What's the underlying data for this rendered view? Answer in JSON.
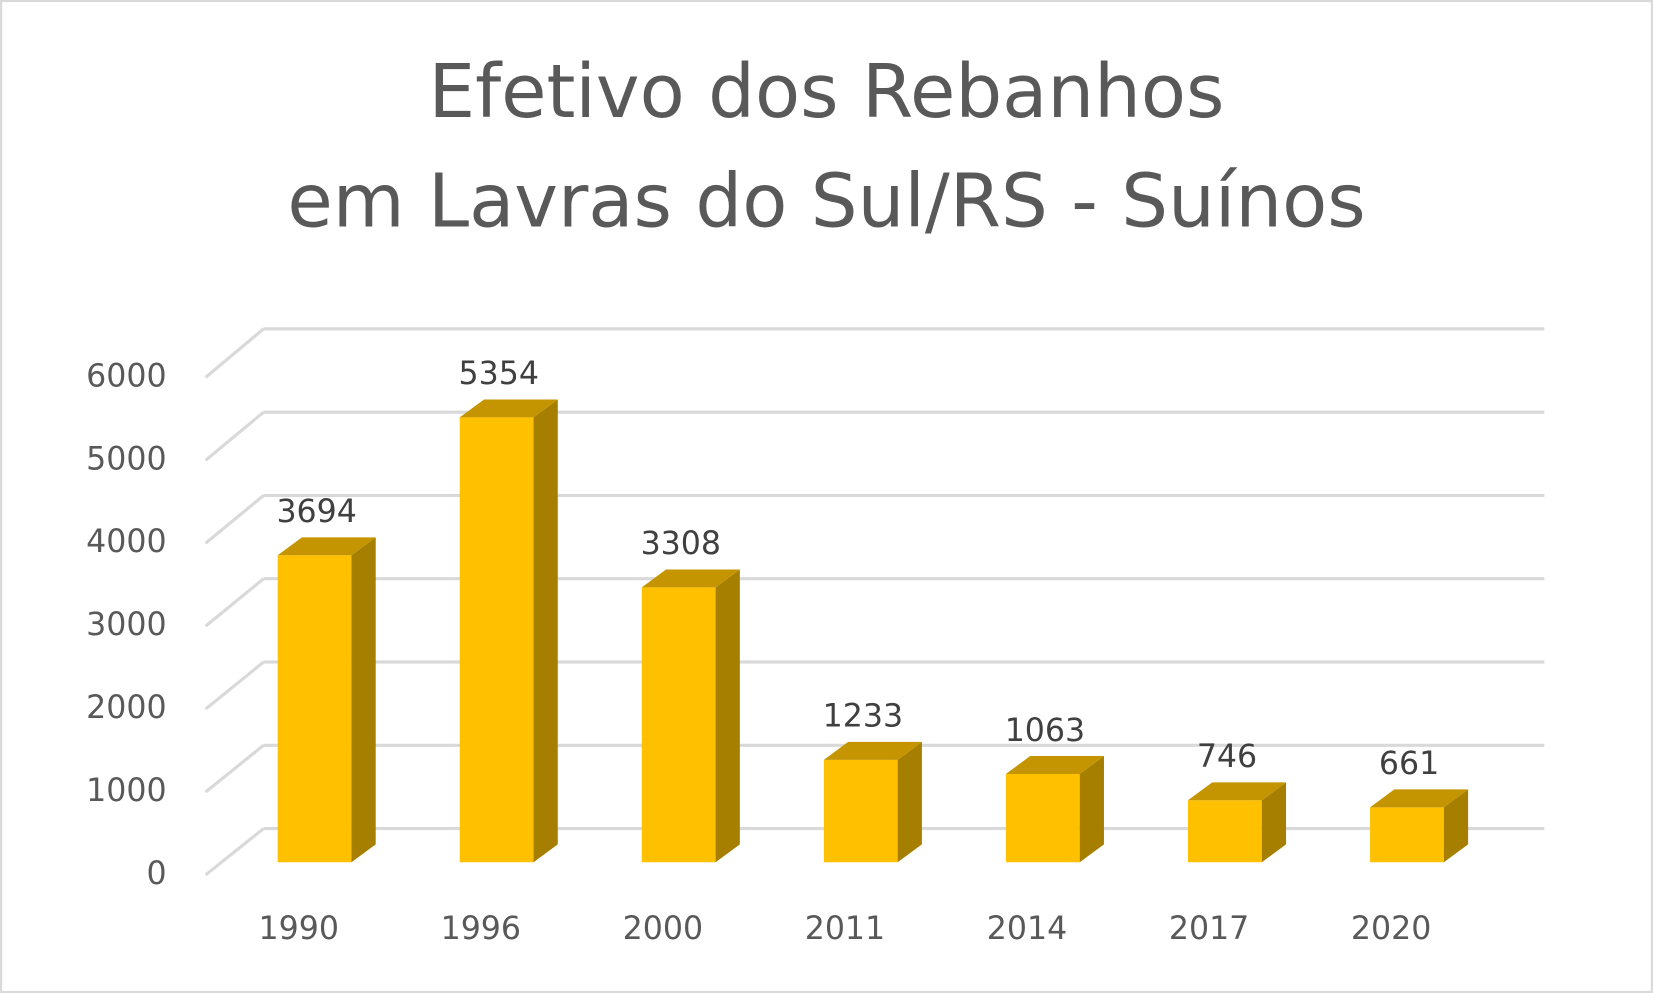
{
  "chart_data": {
    "type": "bar3d",
    "title": [
      "Efetivo dos Rebanhos",
      "em Lavras do Sul/RS - Suínos"
    ],
    "categories": [
      "1990",
      "1996",
      "2000",
      "2011",
      "2014",
      "2017",
      "2020"
    ],
    "values": [
      3694,
      5354,
      3308,
      1233,
      1063,
      746,
      661
    ],
    "color": "#ffc000",
    "ylim": [
      0,
      6000
    ],
    "yticks": [
      0,
      1000,
      2000,
      3000,
      4000,
      5000,
      6000
    ],
    "grid": true
  }
}
